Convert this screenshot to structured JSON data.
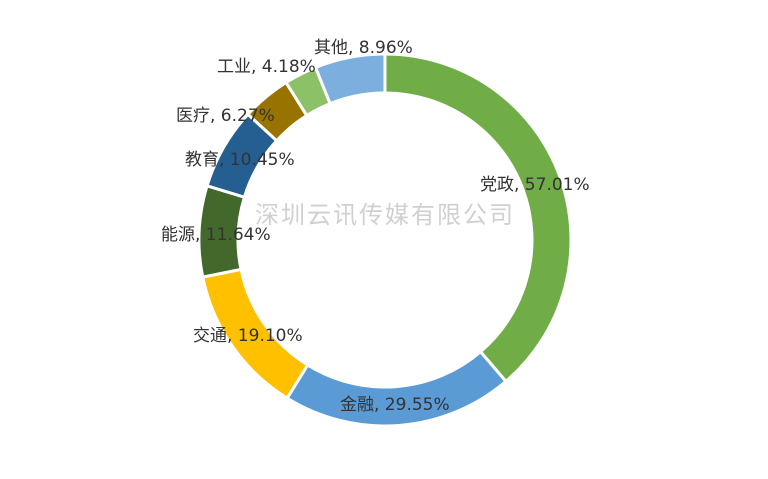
{
  "watermark": "深圳云讯传媒有限公司",
  "chart_data": {
    "type": "pie",
    "variant": "donut",
    "title": "",
    "legend": "none",
    "slices": [
      {
        "category": "党政",
        "value": 57.01,
        "label": "党政, 57.01%",
        "color": "#70ad47"
      },
      {
        "category": "金融",
        "value": 29.55,
        "label": "金融, 29.55%",
        "color": "#5b9bd5"
      },
      {
        "category": "交通",
        "value": 19.1,
        "label": "交通, 19.10%",
        "color": "#ffc000"
      },
      {
        "category": "能源",
        "value": 11.64,
        "label": "能源, 11.64%",
        "color": "#43682b"
      },
      {
        "category": "教育",
        "value": 10.45,
        "label": "教育, 10.45%",
        "color": "#255e91"
      },
      {
        "category": "医疗",
        "value": 6.27,
        "label": "医疗, 6.27%",
        "color": "#997300"
      },
      {
        "category": "工业",
        "value": 4.18,
        "label": "工业, 4.18%",
        "color": "#8cc168"
      },
      {
        "category": "其他",
        "value": 8.96,
        "label": "其他, 8.96%",
        "color": "#7cafdd"
      }
    ]
  }
}
